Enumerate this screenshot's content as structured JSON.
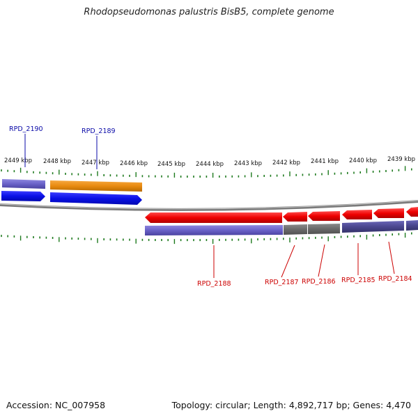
{
  "title": "Rhodopseudomonas palustris BisB5, complete genome",
  "accession": "Accession: NC_007958",
  "summary": "Topology: circular; Length: 4,892,717 bp; Genes: 4,470",
  "scale_labels": [
    "2449 kbp",
    "2448 kbp",
    "2447 kbp",
    "2446 kbp",
    "2445 kbp",
    "2444 kbp",
    "2443 kbp",
    "2442 kbp",
    "2441 kbp",
    "2440 kbp",
    "2439 kbp"
  ],
  "genes_top": [
    {
      "label": "RPD_2190",
      "color": "#0a0aa8"
    },
    {
      "label": "RPD_2189",
      "color": "#0a0aa8"
    }
  ],
  "genes_bottom": [
    {
      "label": "RPD_2188",
      "color": "#cc0000"
    },
    {
      "label": "RPD_2187",
      "color": "#cc0000"
    },
    {
      "label": "RPD_2186",
      "color": "#cc0000"
    },
    {
      "label": "RPD_2185",
      "color": "#cc0000"
    },
    {
      "label": "RPD_2184",
      "color": "#cc0000"
    }
  ],
  "colors": {
    "forward_cds": "#0a10e6",
    "reverse_cds": "#ee0000",
    "feature_purple": "#6a62c8",
    "feature_orange": "#e88a10",
    "feature_gray": "#6a6a6a",
    "backbone": "#777777",
    "gc_tick": "#1e7a1e"
  }
}
